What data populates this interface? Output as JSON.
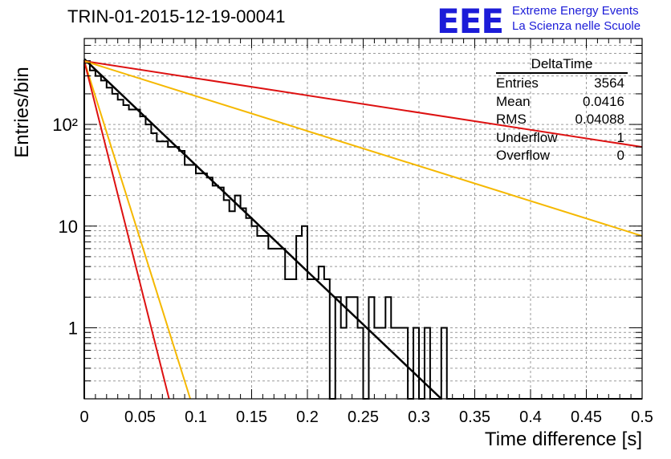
{
  "title": "TRIN-01-2015-12-19-00041",
  "logo": {
    "text": "EEE",
    "line1": "Extreme Energy Events",
    "line2": "La Scienza nelle Scuole"
  },
  "stats": {
    "name": "DeltaTime",
    "rows": [
      {
        "label": "Entries",
        "value": "3564"
      },
      {
        "label": "Mean",
        "value": "0.0416"
      },
      {
        "label": "RMS",
        "value": "0.04088"
      },
      {
        "label": "Underflow",
        "value": "1"
      },
      {
        "label": "Overflow",
        "value": "0"
      }
    ]
  },
  "chart_data": {
    "type": "line",
    "title": "TRIN-01-2015-12-19-00041",
    "xlabel": "Time difference [s]",
    "ylabel": "Entries/bin",
    "xlim": [
      0,
      0.5
    ],
    "ylim": [
      0.2,
      700
    ],
    "yscale": "log",
    "grid": true,
    "xticks": [
      "0",
      "0.05",
      "0.1",
      "0.15",
      "0.2",
      "0.25",
      "0.3",
      "0.35",
      "0.4",
      "0.45",
      "0.5"
    ],
    "yticks": [
      {
        "value": 1,
        "label": "1"
      },
      {
        "value": 10,
        "label": "10"
      },
      {
        "value": 100,
        "label": "10²"
      }
    ],
    "histogram": {
      "bin_width": 0.005,
      "color": "#000000",
      "values": [
        420,
        340,
        300,
        270,
        230,
        200,
        175,
        155,
        140,
        140,
        120,
        100,
        82,
        68,
        68,
        60,
        60,
        55,
        40,
        40,
        33,
        33,
        30,
        25,
        24,
        18,
        14,
        20,
        15,
        12,
        10,
        8,
        8,
        6,
        6,
        6,
        3,
        3,
        8,
        10,
        3,
        3,
        4,
        3,
        0.2,
        2,
        1,
        2,
        2,
        1,
        0.2,
        2,
        1,
        1,
        2,
        1,
        1,
        1,
        0.2,
        1,
        0.2,
        1,
        0.2,
        0.2,
        1,
        0.2,
        0.2,
        0.2,
        0.2,
        0.2,
        0.2,
        0.2,
        0.2,
        0.2,
        0.2,
        0.2,
        0.2,
        0.2,
        0.2,
        0.2,
        0.2,
        0.2,
        0.2,
        0.2,
        0.2,
        0.2,
        0.2,
        0.2,
        0.2,
        0.2,
        0.2,
        0.2,
        0.2,
        0.2,
        0.2,
        0.2,
        0.2,
        0.2,
        0.2,
        0.2
      ]
    },
    "series": [
      {
        "color": "#000000",
        "x": [
          0,
          0.32
        ],
        "y": [
          440,
          0.2
        ]
      },
      {
        "color": "#dd1111",
        "x": [
          0,
          0.5
        ],
        "y": [
          420,
          60
        ]
      },
      {
        "color": "#f5b800",
        "x": [
          0,
          0.5
        ],
        "y": [
          420,
          8
        ]
      },
      {
        "color": "#f5b800",
        "x": [
          0,
          0.095
        ],
        "y": [
          420,
          0.2
        ]
      },
      {
        "color": "#dd1111",
        "x": [
          0,
          0.076
        ],
        "y": [
          420,
          0.2
        ]
      }
    ]
  }
}
